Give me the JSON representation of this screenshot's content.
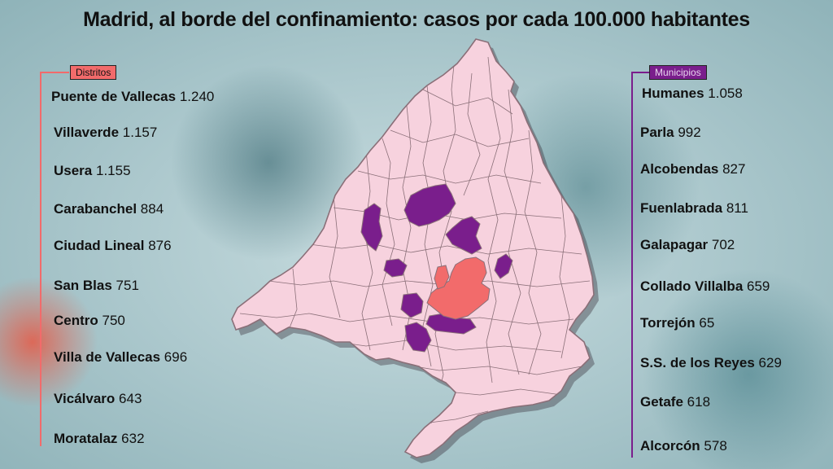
{
  "title": "Madrid, al borde del confinamiento: casos por cada 100.000 habitantes",
  "legend_left": {
    "label": "Distritos",
    "color": "#f26b6b"
  },
  "legend_right": {
    "label": "Municipios",
    "color": "#7a1e8c"
  },
  "map_colors": {
    "base": "#f7d2de",
    "municipios": "#7a1e8c",
    "distritos": "#f26b6b",
    "border": "#8a6f78"
  },
  "distritos": [
    {
      "name": "Puente de Vallecas",
      "value": "1.240"
    },
    {
      "name": "Villaverde",
      "value": "1.157"
    },
    {
      "name": "Usera",
      "value": "1.155"
    },
    {
      "name": "Carabanchel",
      "value": "884"
    },
    {
      "name": "Ciudad Lineal",
      "value": "876"
    },
    {
      "name": "San Blas",
      "value": "751"
    },
    {
      "name": "Centro",
      "value": "750"
    },
    {
      "name": "Villa de Vallecas",
      "value": "696"
    },
    {
      "name": "Vicálvaro",
      "value": "643"
    },
    {
      "name": "Moratalaz",
      "value": "632"
    }
  ],
  "municipios": [
    {
      "name": "Humanes",
      "value": "1.058"
    },
    {
      "name": "Parla",
      "value": "992"
    },
    {
      "name": "Alcobendas",
      "value": "827"
    },
    {
      "name": "Fuenlabrada",
      "value": "811"
    },
    {
      "name": "Galapagar",
      "value": "702"
    },
    {
      "name": "Collado Villalba",
      "value": "659"
    },
    {
      "name": "Torrejón",
      "value": "65"
    },
    {
      "name": "S.S. de los Reyes",
      "value": "629"
    },
    {
      "name": "Getafe",
      "value": "618"
    },
    {
      "name": "Alcorcón",
      "value": "578"
    }
  ]
}
